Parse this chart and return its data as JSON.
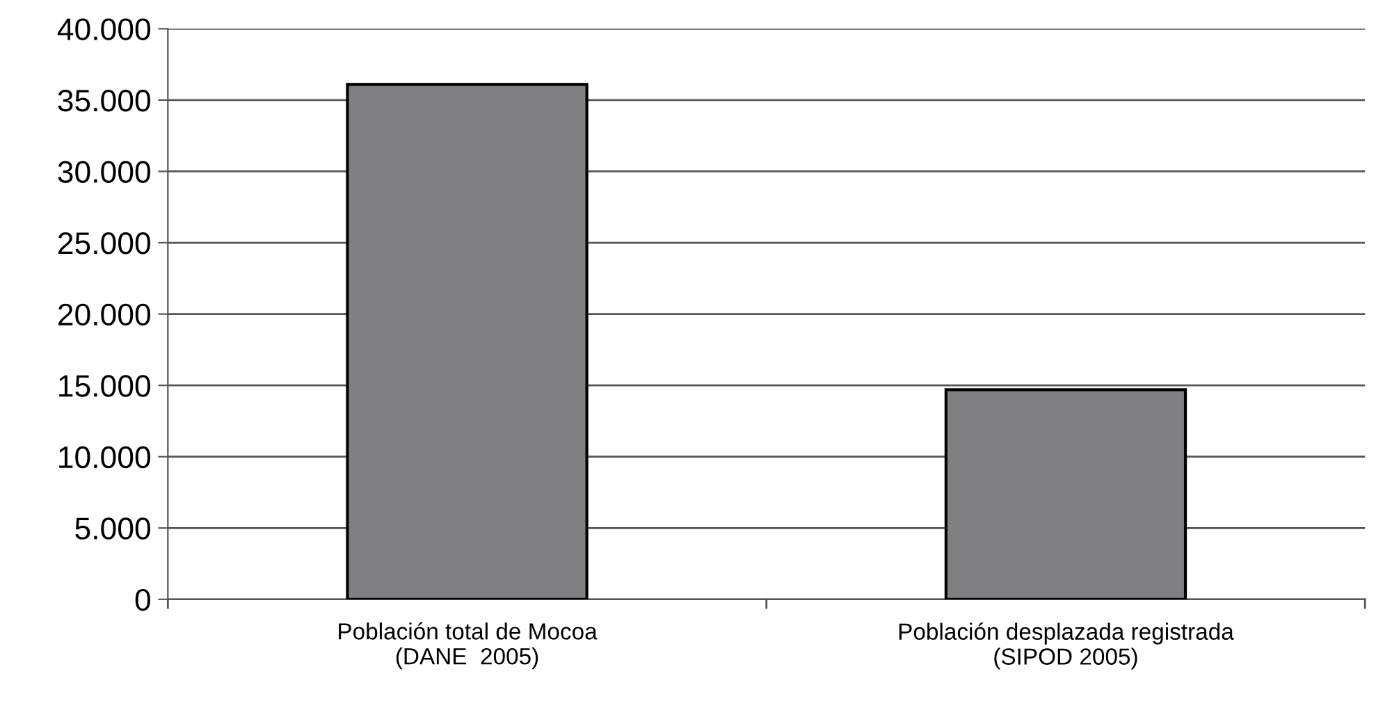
{
  "chart_data": {
    "type": "bar",
    "categories": [
      "Población total de Mocoa\n(DANE  2005)",
      "Población desplazada registrada\n(SIPOD 2005)"
    ],
    "values": [
      36100,
      14700
    ],
    "color": "#808083",
    "ylim": [
      0,
      40000
    ],
    "yticks": [
      0,
      {
        "value": 5000,
        "label": "5.000"
      },
      {
        "value": 10000,
        "label": "10.000"
      },
      {
        "value": 15000,
        "label": "15.000"
      },
      {
        "value": 20000,
        "label": "20.000"
      },
      {
        "value": 25000,
        "label": "25.000"
      },
      {
        "value": 30000,
        "label": "30.000"
      },
      {
        "value": 35000,
        "label": "35.000"
      },
      {
        "value": 40000,
        "label": "40.000"
      }
    ],
    "grid": "y",
    "legend": false
  }
}
